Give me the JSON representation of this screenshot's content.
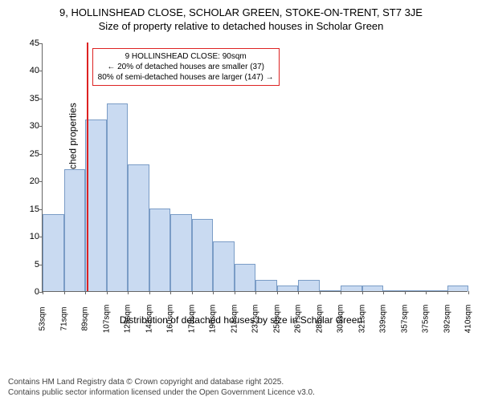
{
  "title_main": "9, HOLLINSHEAD CLOSE, SCHOLAR GREEN, STOKE-ON-TRENT, ST7 3JE",
  "title_sub": "Size of property relative to detached houses in Scholar Green",
  "y_label": "Number of detached properties",
  "x_label": "Distribution of detached houses by size in Scholar Green",
  "chart": {
    "type": "histogram",
    "ylim": [
      0,
      45
    ],
    "y_ticks": [
      0,
      5,
      10,
      15,
      20,
      25,
      30,
      35,
      40,
      45
    ],
    "x_ticks": [
      "53sqm",
      "71sqm",
      "89sqm",
      "107sqm",
      "125sqm",
      "143sqm",
      "160sqm",
      "178sqm",
      "196sqm",
      "214sqm",
      "232sqm",
      "250sqm",
      "267sqm",
      "285sqm",
      "303sqm",
      "321sqm",
      "339sqm",
      "357sqm",
      "375sqm",
      "392sqm",
      "410sqm"
    ],
    "values": [
      14,
      22,
      31,
      34,
      23,
      15,
      14,
      13,
      9,
      5,
      2,
      1,
      2,
      0,
      1,
      1,
      0,
      0,
      0,
      1
    ],
    "bar_fill": "#c9daf1",
    "bar_stroke": "#7a9cc6",
    "background": "#ffffff",
    "marker_position_index": 2.1,
    "marker_color": "#dd2222",
    "marker_width": 2
  },
  "infobox": {
    "border_color": "#dd2222",
    "line1": "9 HOLLINSHEAD CLOSE: 90sqm",
    "line2": "← 20% of detached houses are smaller (37)",
    "line3": "80% of semi-detached houses are larger (147) →"
  },
  "footer": {
    "line1": "Contains HM Land Registry data © Crown copyright and database right 2025.",
    "line2": "Contains public sector information licensed under the Open Government Licence v3.0."
  }
}
